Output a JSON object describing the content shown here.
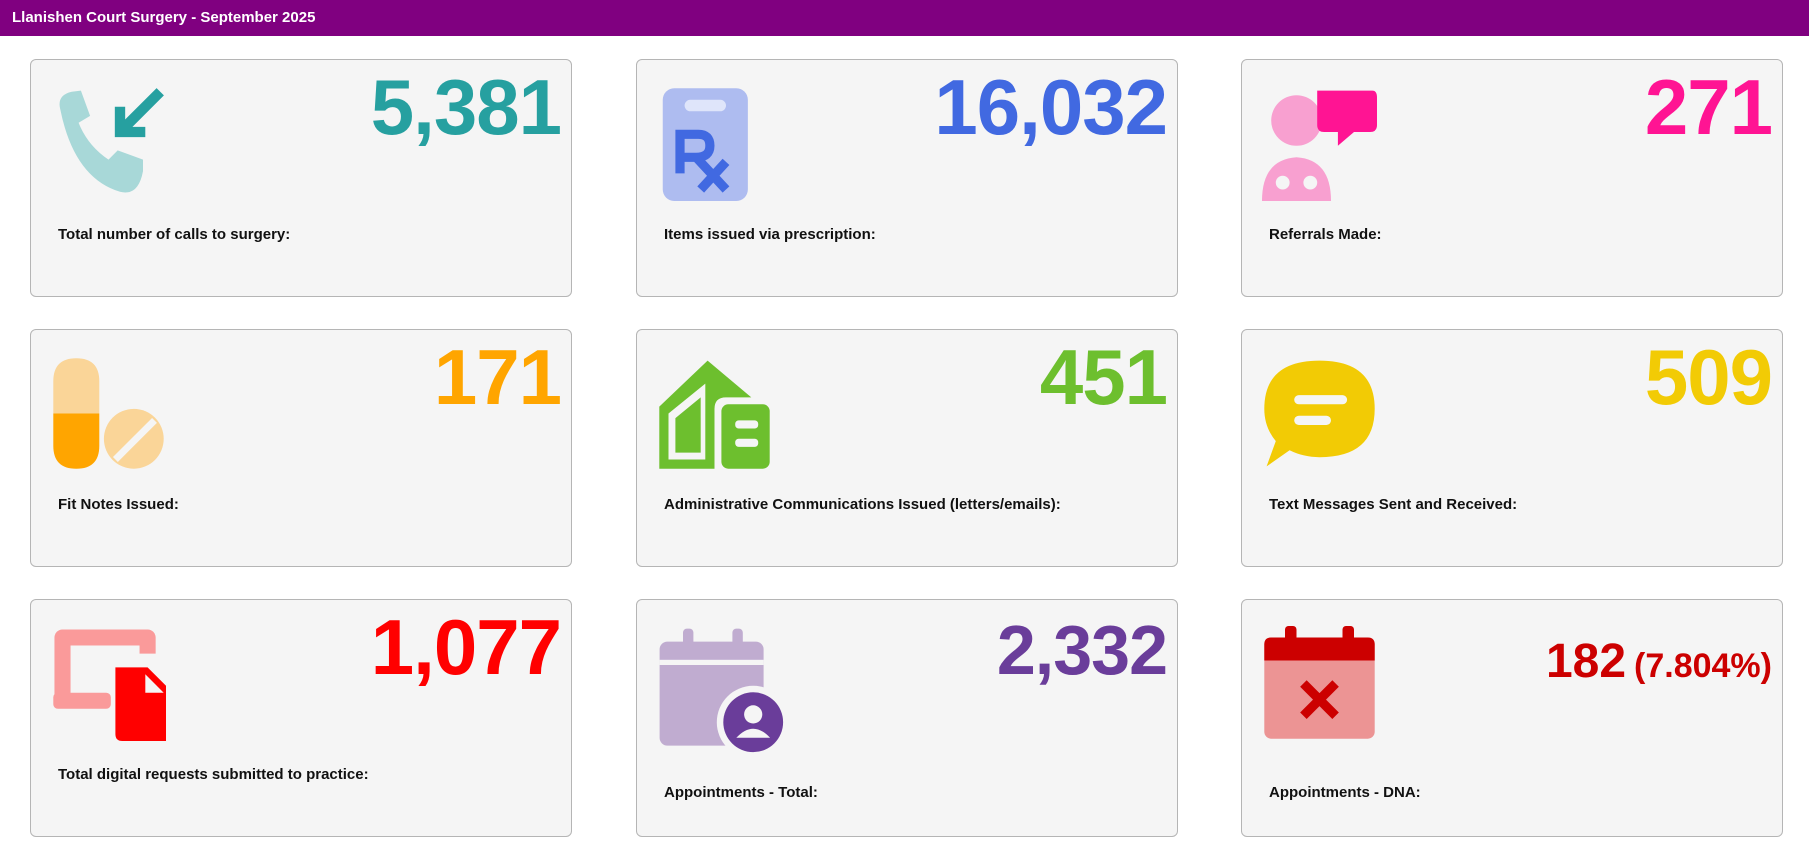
{
  "header": {
    "title": "Llanishen Court Surgery - September 2025"
  },
  "cards": [
    {
      "value": "5,381",
      "label": "Total number of calls to surgery:",
      "color": "#26a0a0"
    },
    {
      "value": "16,032",
      "label": "Items issued via prescription:",
      "color": "#4169e1"
    },
    {
      "value": "271",
      "label": "Referrals Made:",
      "color": "#ff1493"
    },
    {
      "value": "171",
      "label": "Fit Notes Issued:",
      "color": "#ffa500"
    },
    {
      "value": "451",
      "label": "Administrative Communications Issued (letters/emails):",
      "color": "#6dbf2e"
    },
    {
      "value": "509",
      "label": "Text Messages Sent and Received:",
      "color": "#f2cb05"
    },
    {
      "value": "1,077",
      "label": "Total digital requests submitted to practice:",
      "color": "#ff0000"
    },
    {
      "value": "2,332",
      "label": "Appointments - Total:",
      "color": "#6a3d9a"
    },
    {
      "value": "182",
      "value_note": "(7.804%)",
      "label": "Appointments - DNA:",
      "color": "#cc0000"
    }
  ]
}
